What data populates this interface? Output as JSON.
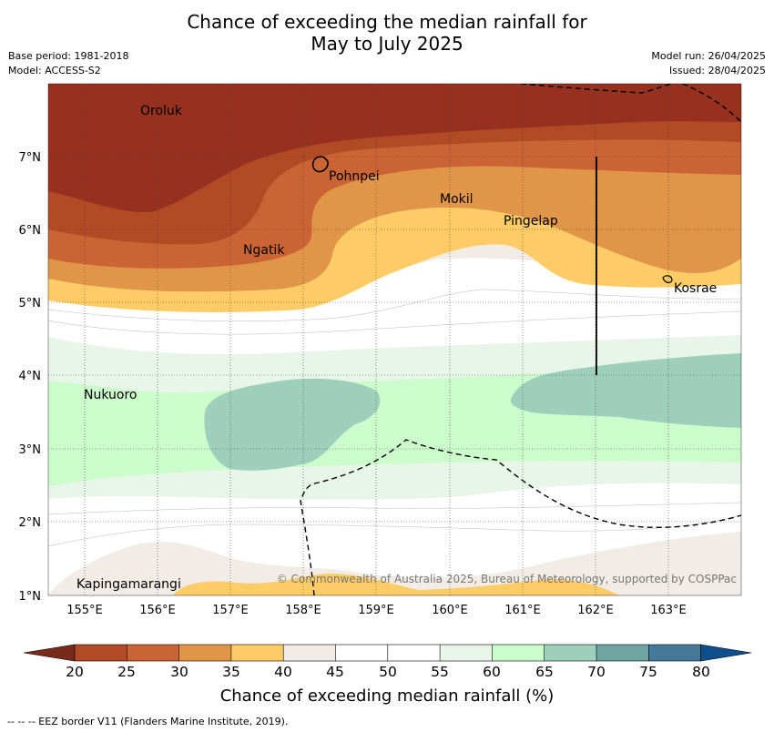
{
  "title_line1": "Chance of exceeding the median rainfall for",
  "title_line2": "May to July 2025",
  "meta": {
    "base_period": "Base period: 1981-2018",
    "model": "Model: ACCESS-S2",
    "model_run": "Model run: 26/04/2025",
    "issued": "Issued: 28/04/2025"
  },
  "map": {
    "lon_labels": [
      "155°E",
      "156°E",
      "157°E",
      "158°E",
      "159°E",
      "160°E",
      "161°E",
      "162°E",
      "163°E"
    ],
    "lat_labels": [
      "7°N",
      "6°N",
      "5°N",
      "4°N",
      "3°N",
      "2°N",
      "1°N"
    ],
    "places": {
      "oroluk": "Oroluk",
      "pohnpei": "Pohnpei",
      "mokil": "Mokil",
      "pingelap": "Pingelap",
      "ngatik": "Ngatik",
      "kosrae": "Kosrae",
      "nukuoro": "Nukuoro",
      "kapingamarangi": "Kapingamarangi"
    },
    "copyright": "© Commonwealth of Australia 2025, Bureau of Meteorology, supported by COSPPac",
    "colors": {
      "c20": "#96311f",
      "c25": "#b24a26",
      "c30": "#cb6435",
      "c35": "#e09548",
      "c40": "#fdcc66",
      "c45": "#f1ece6",
      "c50": "#ffffff",
      "c55": "#ffffff",
      "c60": "#e8f5e9",
      "c65": "#ccfbcc",
      "c70": "#9dcfbb",
      "c75": "#6fa5a3",
      "c80": "#44799a",
      "over": "#0f4e8c"
    }
  },
  "colorbar": {
    "ticks": [
      "20",
      "25",
      "30",
      "35",
      "40",
      "45",
      "50",
      "55",
      "60",
      "65",
      "70",
      "75",
      "80"
    ],
    "label": "Chance of exceeding median rainfall (%)"
  },
  "footnote": "--  --  -- EEZ border V11 (Flanders Marine Institute, 2019)."
}
